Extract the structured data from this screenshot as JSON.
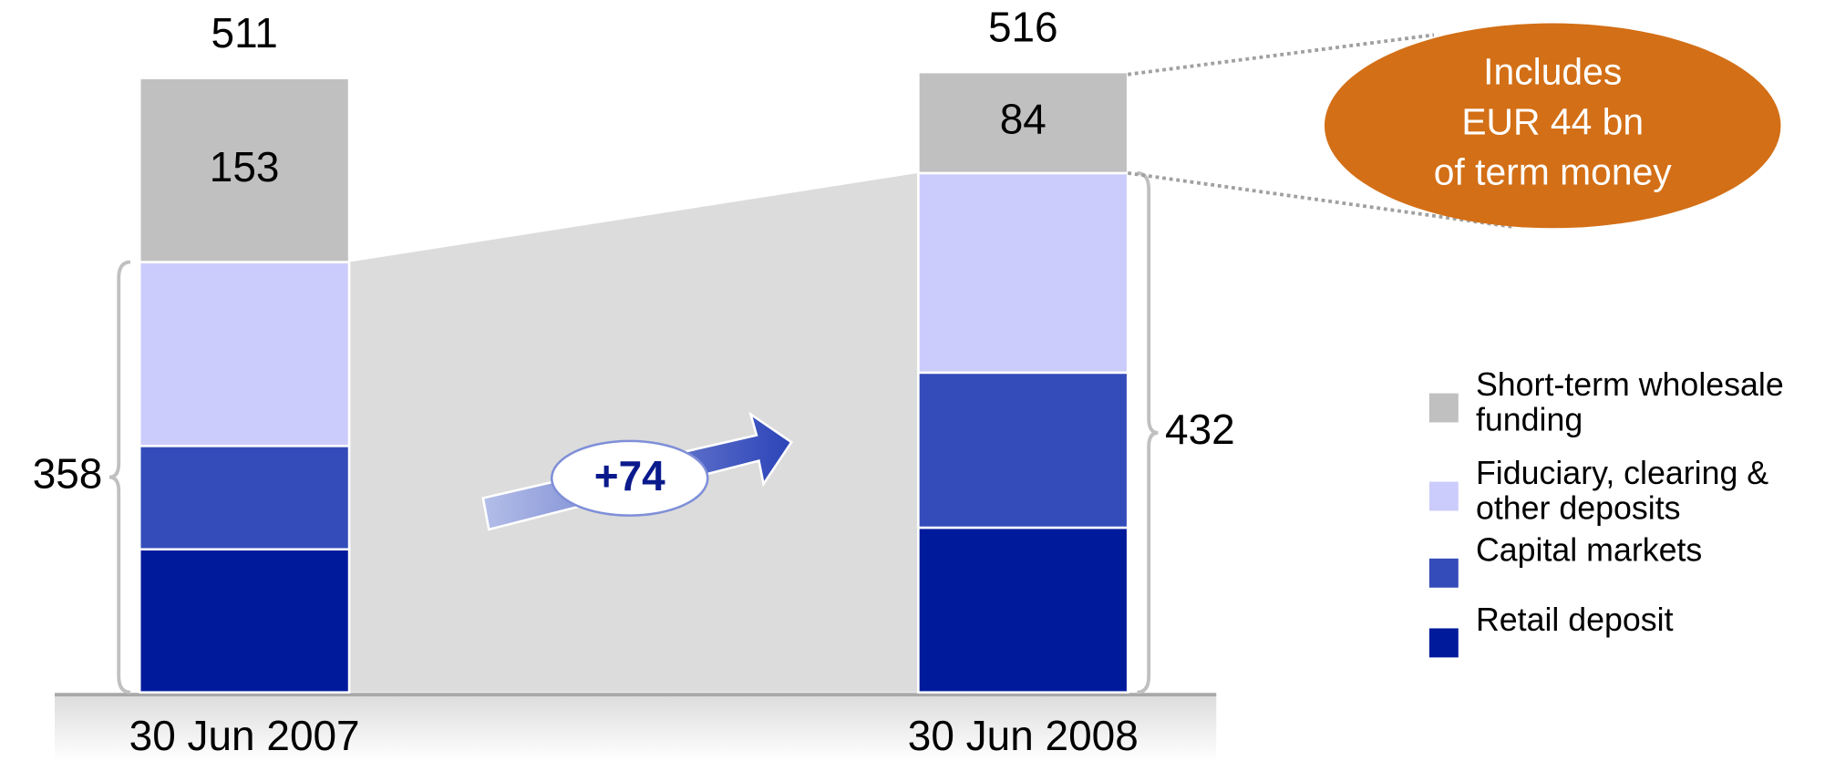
{
  "chart_data": {
    "type": "stacked_bar",
    "categories": [
      "30 Jun 2007",
      "30 Jun 2008"
    ],
    "series": [
      {
        "name": "Retail deposit",
        "color": "#001a9c",
        "values": [
          119,
          137
        ]
      },
      {
        "name": "Capital markets",
        "color": "#344cba",
        "values": [
          86,
          129
        ]
      },
      {
        "name": "Fiduciary, clearing & other deposits",
        "color": "#ccccfc",
        "values": [
          153,
          166
        ]
      },
      {
        "name": "Short-term wholesale funding",
        "color": "#c0c0c0",
        "values": [
          153,
          84
        ],
        "data_labels": true
      }
    ],
    "totals": [
      511,
      516
    ],
    "brace_totals": [
      358,
      432
    ],
    "change_label": "+74",
    "callout_lines": [
      "Includes",
      "EUR 44 bn",
      "of term money"
    ],
    "callout_color": "#d36f16",
    "legend": "right"
  }
}
